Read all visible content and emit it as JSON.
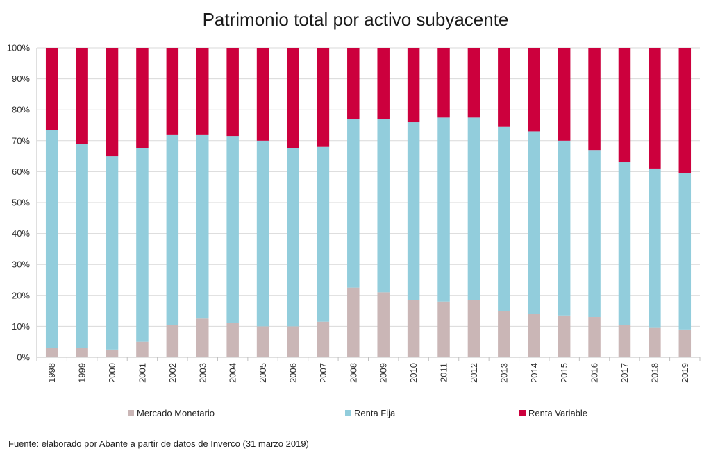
{
  "chart_data": {
    "type": "bar",
    "stacked": true,
    "percent": true,
    "title": "Patrimonio total por activo subyacente",
    "categories": [
      "1998",
      "1999",
      "2000",
      "2001",
      "2002",
      "2003",
      "2004",
      "2005",
      "2006",
      "2007",
      "2008",
      "2009",
      "2010",
      "2011",
      "2012",
      "2013",
      "2014",
      "2015",
      "2016",
      "2017",
      "2018",
      "2019"
    ],
    "series": [
      {
        "name": "Mercado Monetario",
        "color": "#cab6b6",
        "values": [
          3,
          3,
          2.5,
          5,
          10.5,
          12.5,
          11,
          10,
          10,
          11.5,
          22.5,
          21,
          18.5,
          18,
          18.5,
          15,
          14,
          13.5,
          13,
          10.5,
          9.5,
          9
        ]
      },
      {
        "name": "Renta Fija",
        "color": "#92cddc",
        "values": [
          70.5,
          66,
          62.5,
          62.5,
          61.5,
          59.5,
          60.5,
          60,
          57.5,
          56.5,
          54.5,
          56,
          57.5,
          59.5,
          59,
          59.5,
          59,
          56.5,
          54,
          52.5,
          51.5,
          50.5
        ]
      },
      {
        "name": "Renta Variable",
        "color": "#cc003d",
        "values": [
          26.5,
          31,
          35,
          32.5,
          28,
          28,
          28.5,
          30,
          32.5,
          32,
          23,
          23,
          24,
          22.5,
          22.5,
          25.5,
          27,
          30,
          33,
          37,
          39,
          40.5
        ]
      }
    ],
    "ylim": [
      0,
      100
    ],
    "yticks": [
      "0%",
      "10%",
      "20%",
      "30%",
      "40%",
      "50%",
      "60%",
      "70%",
      "80%",
      "90%",
      "100%"
    ],
    "grid": true,
    "legend": "bottom"
  },
  "source": "Fuente: elaborado por Abante a partir de datos de Inverco (31 marzo 2019)"
}
